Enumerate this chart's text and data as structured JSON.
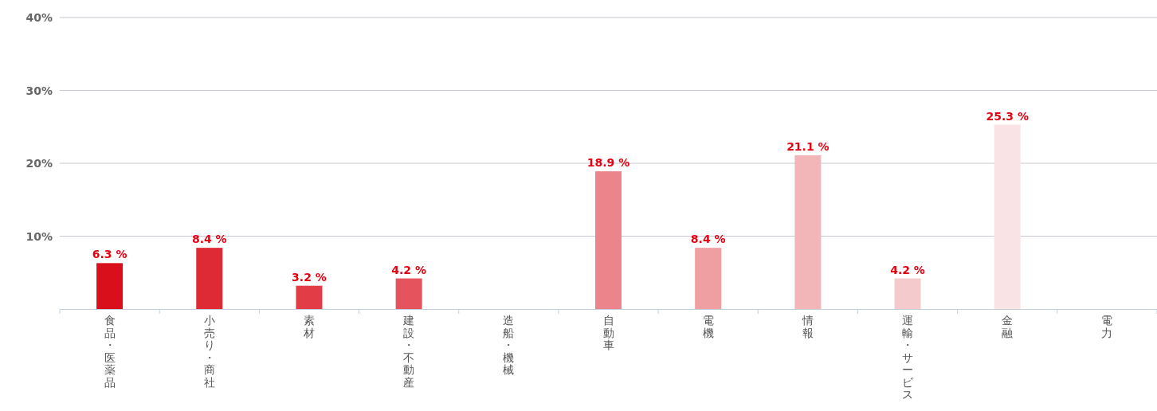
{
  "chart_data": {
    "type": "bar",
    "categories": [
      "食品・医薬品",
      "小売り・商社",
      "素材",
      "建設・不動産",
      "造船・機械",
      "自動車",
      "電機",
      "情報",
      "運輸・サービス",
      "金融",
      "電力"
    ],
    "values": [
      6.3,
      8.4,
      3.2,
      4.2,
      null,
      18.9,
      8.4,
      21.1,
      4.2,
      25.3,
      null
    ],
    "colors": [
      "#d90f1b",
      "#de2a35",
      "#e23c46",
      "#e5545c",
      null,
      "#ec858b",
      "#ef9ea2",
      "#f2b6b8",
      "#f5cacd",
      "#fae3e5",
      null
    ],
    "value_labels": [
      "6.3 %",
      "8.4 %",
      "3.2 %",
      "4.2 %",
      null,
      "18.9 %",
      "8.4 %",
      "21.1 %",
      "4.2 %",
      "25.3 %",
      null
    ],
    "ylim": [
      0,
      40
    ],
    "yticks": [
      {
        "value": 0,
        "label": null
      },
      {
        "value": 10,
        "label": "10%"
      },
      {
        "value": 20,
        "label": "20%"
      },
      {
        "value": 30,
        "label": "30%"
      },
      {
        "value": 40,
        "label": "40%"
      }
    ],
    "grid": "y"
  }
}
